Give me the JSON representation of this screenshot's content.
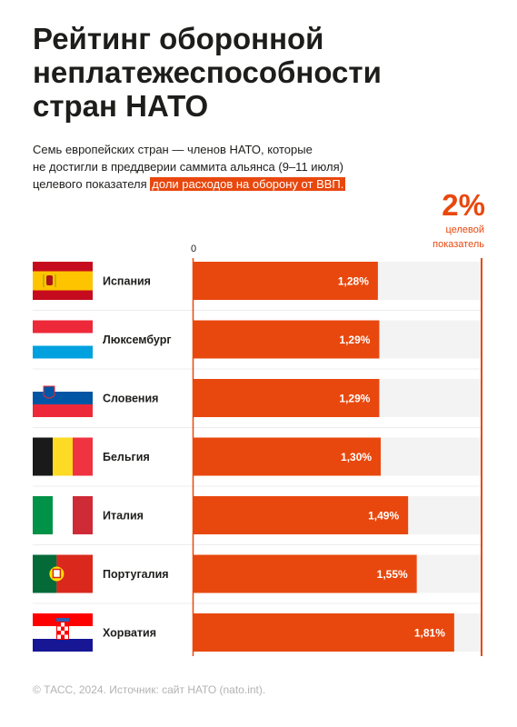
{
  "title": [
    "Рейтинг оборонной",
    "неплатежеспособности",
    "стран НАТО"
  ],
  "subtitle": {
    "line1": "Семь европейских стран — членов НАТО, которые",
    "line2": "не достигли в преддверии саммита альянса (9–11 июля)",
    "line3_plain": "целевого показателя",
    "line3_highlight": "доли расходов на оборону от ВВП."
  },
  "target": {
    "value": "2%",
    "label_line1": "целевой",
    "label_line2": "показатель"
  },
  "footer": "© ТАСС, 2024. Источник: сайт НАТО (nato.int).",
  "colors": {
    "accent": "#e8480e",
    "track": "#f3f3f3",
    "text": "#1d1d1b"
  },
  "chart_data": {
    "type": "bar",
    "orientation": "horizontal",
    "categories": [
      "Испания",
      "Люксембург",
      "Словения",
      "Бельгия",
      "Италия",
      "Португалия",
      "Хорватия"
    ],
    "values": [
      1.28,
      1.29,
      1.29,
      1.3,
      1.49,
      1.55,
      1.81
    ],
    "value_labels": [
      "1,28%",
      "1,29%",
      "1,29%",
      "1,30%",
      "1,49%",
      "1,55%",
      "1,81%"
    ],
    "flags": [
      "spain-flag",
      "luxembourg-flag",
      "slovenia-flag",
      "belgium-flag",
      "italy-flag",
      "portugal-flag",
      "croatia-flag"
    ],
    "zero_label": "0",
    "xlim": [
      0,
      2
    ],
    "reference_line": 2,
    "grid": false
  }
}
